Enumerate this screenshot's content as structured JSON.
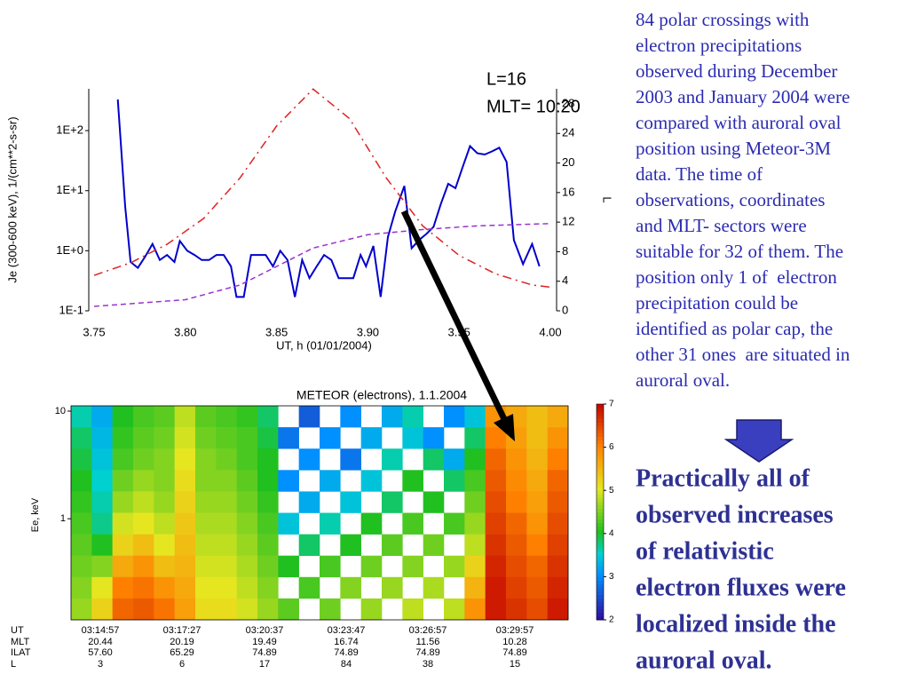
{
  "chart_data": [
    {
      "type": "line",
      "xlabel": "UT, h (01/01/2004)",
      "ylabel": "Je (300-600 keV), 1/(cm**2-s-sr)",
      "y2label": "L",
      "annotations": [
        "L=16",
        "MLT= 10:20"
      ],
      "xlim": [
        3.75,
        4.0
      ],
      "xticks": [
        {
          "value": 3.75,
          "label": "3.75"
        },
        {
          "value": 3.8,
          "label": "3.80"
        },
        {
          "value": 3.85,
          "label": "3.85"
        },
        {
          "value": 3.9,
          "label": "3.90"
        },
        {
          "value": 3.95,
          "label": "3.95"
        },
        {
          "value": 4.0,
          "label": "4.00"
        }
      ],
      "ylim": [
        0.1,
        550
      ],
      "ylog": true,
      "yticks": [
        {
          "value": 0.1,
          "label": "1E-1"
        },
        {
          "value": 1,
          "label": "1E+0"
        },
        {
          "value": 10,
          "label": "1E+1"
        },
        {
          "value": 100,
          "label": "1E+2"
        }
      ],
      "y2lim": [
        0,
        30.4
      ],
      "y2ticks": [
        0,
        4,
        8,
        12,
        16,
        20,
        24,
        28
      ],
      "series": [
        {
          "color": "#0000cc",
          "dash": "solid",
          "x": [
            3.763,
            3.767,
            3.77,
            3.774,
            3.778,
            3.782,
            3.786,
            3.79,
            3.794,
            3.797,
            3.801,
            3.805,
            3.809,
            3.813,
            3.817,
            3.821,
            3.825,
            3.828,
            3.832,
            3.836,
            3.84,
            3.844,
            3.848,
            3.852,
            3.856,
            3.86,
            3.864,
            3.868,
            3.872,
            3.876,
            3.88,
            3.884,
            3.888,
            3.892,
            3.896,
            3.899,
            3.903,
            3.907,
            3.911,
            3.915,
            3.92,
            3.924,
            3.928,
            3.932,
            3.936,
            3.94,
            3.944,
            3.948,
            3.952,
            3.956,
            3.96,
            3.964,
            3.968,
            3.972,
            3.976,
            3.98,
            3.985,
            3.99,
            3.994
          ],
          "values": [
            330,
            5.5,
            0.65,
            0.52,
            0.8,
            1.3,
            0.7,
            0.85,
            0.65,
            1.45,
            1.0,
            0.85,
            0.7,
            0.7,
            0.85,
            0.85,
            0.55,
            0.17,
            0.17,
            0.85,
            0.85,
            0.85,
            0.55,
            1.0,
            0.7,
            0.17,
            0.7,
            0.35,
            0.55,
            0.85,
            0.7,
            0.35,
            0.35,
            0.35,
            0.85,
            0.55,
            1.2,
            0.17,
            1.7,
            4.5,
            12,
            1.1,
            1.5,
            1.9,
            2.5,
            6,
            13,
            11,
            25,
            55,
            42,
            40,
            45,
            52,
            30,
            1.5,
            0.6,
            1.3,
            0.55
          ]
        },
        {
          "color": "#dd2222",
          "dash": "dashdot",
          "axis": "y2",
          "x": [
            3.75,
            3.77,
            3.79,
            3.81,
            3.83,
            3.85,
            3.87,
            3.89,
            3.91,
            3.93,
            3.95,
            3.97,
            3.99,
            4.0
          ],
          "values": [
            4.8,
            6.5,
            9,
            12.5,
            18,
            25,
            30,
            26,
            18,
            11.5,
            7.5,
            5,
            3.5,
            3.2
          ]
        },
        {
          "color": "#9933cc",
          "dash": "dashed",
          "axis": "y2",
          "x": [
            3.75,
            3.8,
            3.83,
            3.85,
            3.87,
            3.9,
            3.93,
            3.96,
            4.0
          ],
          "values": [
            0.6,
            1.5,
            3.5,
            6,
            8.5,
            10.3,
            11,
            11.5,
            11.8
          ]
        }
      ]
    },
    {
      "type": "heatmap",
      "title": "METEOR (electrons), 1.1.2004",
      "ylabel": "Ee, keV",
      "ylim": [
        0.115,
        11.2
      ],
      "ylog": true,
      "yticks": [
        1,
        10
      ],
      "zlim": [
        2,
        7
      ],
      "zticks": [
        2,
        3,
        4,
        5,
        6,
        7
      ],
      "z": [
        [
          3.6,
          3.2,
          4.0,
          4.2,
          4.3,
          4.8,
          4.3,
          4.2,
          4.1,
          3.8,
          null,
          2.6,
          null,
          3.0,
          null,
          3.2,
          3.6,
          null,
          3.0,
          3.4,
          5.8,
          5.6,
          5.4,
          5.6
        ],
        [
          3.8,
          3.3,
          4.1,
          4.3,
          4.4,
          4.9,
          4.4,
          4.3,
          4.2,
          3.9,
          2.8,
          null,
          3.0,
          null,
          3.2,
          null,
          3.4,
          3.0,
          null,
          3.8,
          6.0,
          5.7,
          5.4,
          5.8
        ],
        [
          3.9,
          3.4,
          4.2,
          4.4,
          4.5,
          5.0,
          4.5,
          4.4,
          4.2,
          4.0,
          null,
          3.0,
          null,
          2.8,
          null,
          3.6,
          null,
          3.8,
          3.2,
          4.0,
          6.2,
          5.8,
          5.5,
          6.0
        ],
        [
          4.0,
          3.5,
          4.4,
          4.6,
          4.5,
          5.1,
          4.5,
          4.5,
          4.3,
          4.0,
          3.0,
          null,
          3.2,
          null,
          3.4,
          null,
          4.0,
          null,
          3.8,
          4.2,
          6.3,
          5.9,
          5.6,
          6.2
        ],
        [
          4.1,
          3.6,
          4.6,
          4.8,
          4.6,
          5.2,
          4.6,
          4.6,
          4.4,
          4.1,
          null,
          3.2,
          null,
          3.4,
          null,
          3.8,
          null,
          4.0,
          null,
          4.4,
          6.4,
          6.0,
          5.7,
          6.3
        ],
        [
          4.2,
          3.7,
          4.9,
          5.0,
          4.8,
          5.3,
          4.7,
          4.7,
          4.5,
          4.2,
          3.4,
          null,
          3.6,
          null,
          4.0,
          null,
          4.2,
          null,
          4.2,
          4.6,
          6.5,
          6.2,
          5.8,
          6.4
        ],
        [
          4.3,
          4.0,
          5.2,
          5.4,
          5.0,
          5.4,
          4.8,
          4.8,
          4.6,
          4.3,
          null,
          3.8,
          null,
          4.0,
          null,
          4.3,
          null,
          4.4,
          null,
          4.8,
          6.6,
          6.3,
          6.0,
          6.5
        ],
        [
          4.4,
          4.5,
          5.6,
          5.8,
          5.4,
          5.5,
          4.9,
          4.9,
          4.7,
          4.4,
          4.0,
          null,
          4.2,
          null,
          4.4,
          null,
          4.5,
          null,
          4.6,
          5.2,
          6.7,
          6.4,
          6.2,
          6.6
        ],
        [
          4.5,
          5.0,
          6.0,
          6.1,
          5.8,
          5.6,
          5.0,
          5.0,
          4.8,
          4.5,
          null,
          4.2,
          null,
          4.5,
          null,
          4.6,
          null,
          4.7,
          null,
          5.5,
          6.8,
          6.5,
          6.3,
          6.7
        ],
        [
          4.6,
          5.2,
          6.2,
          6.3,
          6.1,
          5.7,
          5.1,
          5.1,
          4.9,
          4.6,
          4.3,
          null,
          4.4,
          null,
          4.6,
          null,
          4.8,
          null,
          4.8,
          5.8,
          6.8,
          6.6,
          6.4,
          6.8
        ]
      ],
      "table": {
        "row_labels": [
          "UT",
          "MLT",
          "ILAT",
          "L"
        ],
        "rows": [
          [
            "03:14:57",
            "03:17:27",
            "03:20:37",
            "03:23:47",
            "03:26:57",
            "03:29:57"
          ],
          [
            "20.44",
            "20.19",
            "19.49",
            "16.74",
            "11.56",
            "10.28"
          ],
          [
            "57.60",
            "65.29",
            "74.89",
            "74.89",
            "74.89",
            "74.89"
          ],
          [
            "3",
            "6",
            "17",
            "84",
            "38",
            "15"
          ]
        ]
      }
    }
  ],
  "paragraph": [
    "84 polar crossings with",
    "electron precipitations",
    "observed during December",
    "2003 and January 2004 were",
    "compared with auroral oval",
    "position using Meteor-3M",
    "data. The time of",
    "observations, coordinates",
    "and MLT- sectors were",
    "suitable for 32 of them. The",
    "position only 1 of  electron",
    "precipitation could be",
    "identified as polar cap, the",
    "other 31 ones  are situated in",
    "auroral oval."
  ],
  "conclusion": [
    "Practically all of",
    "observed increases",
    "of relativistic",
    "electron fluxes were",
    "localized inside the",
    "auroral oval."
  ]
}
